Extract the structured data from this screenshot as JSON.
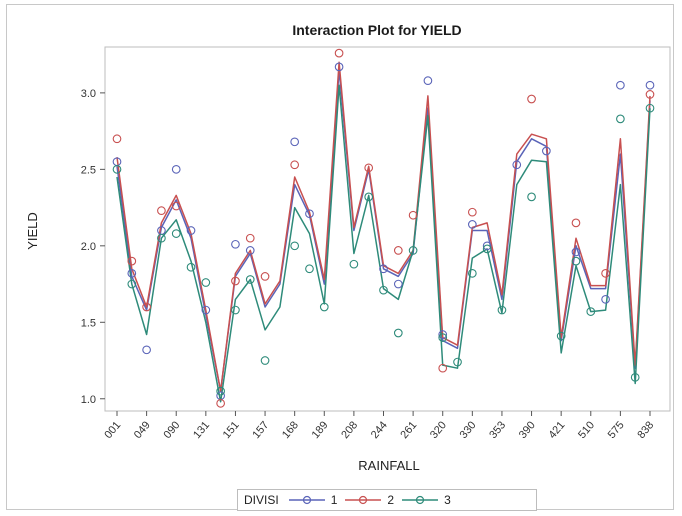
{
  "chart_data": {
    "type": "line",
    "title": "Interaction Plot for YIELD",
    "xlabel": "RAINFALL",
    "ylabel": "YIELD",
    "ylim": [
      0.92,
      3.3
    ],
    "yticks": [
      1.0,
      1.5,
      2.0,
      2.5,
      3.0
    ],
    "xticks": [
      "001",
      "049",
      "090",
      "131",
      "151",
      "157",
      "168",
      "189",
      "208",
      "244",
      "261",
      "320",
      "330",
      "353",
      "390",
      "421",
      "510",
      "575",
      "838"
    ],
    "grid": false,
    "legend": {
      "title": "DIVISI",
      "placement": "bottom",
      "entries": [
        "1",
        "2",
        "3"
      ]
    },
    "colors": {
      "1": "#5a64b8",
      "2": "#c85050",
      "3": "#2e8b7a"
    },
    "series": [
      {
        "name": "1",
        "values": [
          2.52,
          1.8,
          1.58,
          2.12,
          2.3,
          2.05,
          1.55,
          1.05,
          1.8,
          1.95,
          1.6,
          1.75,
          2.4,
          2.2,
          1.75,
          3.15,
          2.1,
          2.5,
          1.85,
          1.8,
          1.95,
          2.9,
          1.38,
          1.33,
          2.1,
          2.1,
          1.65,
          2.55,
          2.7,
          2.65,
          1.38,
          2.0,
          1.72,
          1.72,
          2.6,
          1.2,
          2.95
        ]
      },
      {
        "name": "2",
        "values": [
          2.58,
          1.85,
          1.6,
          2.15,
          2.33,
          2.08,
          1.58,
          1.05,
          1.82,
          1.97,
          1.62,
          1.77,
          2.45,
          2.22,
          1.78,
          3.2,
          2.12,
          2.52,
          1.87,
          1.82,
          1.97,
          2.98,
          1.4,
          1.35,
          2.12,
          2.15,
          1.68,
          2.6,
          2.73,
          2.7,
          1.4,
          2.05,
          1.74,
          1.74,
          2.7,
          1.22,
          2.98
        ]
      },
      {
        "name": "3",
        "values": [
          2.45,
          1.75,
          1.42,
          2.05,
          2.17,
          1.9,
          1.5,
          0.98,
          1.65,
          1.78,
          1.45,
          1.6,
          2.25,
          2.08,
          1.62,
          3.05,
          1.95,
          2.33,
          1.72,
          1.65,
          1.97,
          2.85,
          1.22,
          1.2,
          1.92,
          1.98,
          1.56,
          2.4,
          2.56,
          2.55,
          1.3,
          1.87,
          1.57,
          1.58,
          2.4,
          1.1,
          2.9
        ]
      }
    ],
    "points": [
      {
        "s": "1",
        "i": 0,
        "y": 2.55
      },
      {
        "s": "1",
        "i": 1,
        "y": 1.82
      },
      {
        "s": "1",
        "i": 2,
        "y": 1.32
      },
      {
        "s": "1",
        "i": 3,
        "y": 2.1
      },
      {
        "s": "1",
        "i": 4,
        "y": 2.5
      },
      {
        "s": "1",
        "i": 5,
        "y": 2.1
      },
      {
        "s": "1",
        "i": 6,
        "y": 1.58
      },
      {
        "s": "1",
        "i": 7,
        "y": 1.02
      },
      {
        "s": "1",
        "i": 8,
        "y": 2.01
      },
      {
        "s": "1",
        "i": 9,
        "y": 1.97
      },
      {
        "s": "1",
        "i": 12,
        "y": 2.68
      },
      {
        "s": "1",
        "i": 13,
        "y": 2.21
      },
      {
        "s": "1",
        "i": 15,
        "y": 3.17
      },
      {
        "s": "1",
        "i": 18,
        "y": 1.85
      },
      {
        "s": "1",
        "i": 19,
        "y": 1.75
      },
      {
        "s": "1",
        "i": 21,
        "y": 3.08
      },
      {
        "s": "1",
        "i": 22,
        "y": 1.42
      },
      {
        "s": "1",
        "i": 24,
        "y": 2.14
      },
      {
        "s": "1",
        "i": 25,
        "y": 2.0
      },
      {
        "s": "1",
        "i": 27,
        "y": 2.53
      },
      {
        "s": "1",
        "i": 29,
        "y": 2.62
      },
      {
        "s": "1",
        "i": 31,
        "y": 1.96
      },
      {
        "s": "1",
        "i": 33,
        "y": 1.65
      },
      {
        "s": "1",
        "i": 34,
        "y": 3.05
      },
      {
        "s": "1",
        "i": 36,
        "y": 3.05
      },
      {
        "s": "2",
        "i": 0,
        "y": 2.7
      },
      {
        "s": "2",
        "i": 1,
        "y": 1.9
      },
      {
        "s": "2",
        "i": 2,
        "y": 1.6
      },
      {
        "s": "2",
        "i": 3,
        "y": 2.23
      },
      {
        "s": "2",
        "i": 4,
        "y": 2.26
      },
      {
        "s": "2",
        "i": 7,
        "y": 0.97
      },
      {
        "s": "2",
        "i": 8,
        "y": 1.77
      },
      {
        "s": "2",
        "i": 9,
        "y": 2.05
      },
      {
        "s": "2",
        "i": 10,
        "y": 1.8
      },
      {
        "s": "2",
        "i": 12,
        "y": 2.53
      },
      {
        "s": "2",
        "i": 15,
        "y": 3.26
      },
      {
        "s": "2",
        "i": 17,
        "y": 2.51
      },
      {
        "s": "2",
        "i": 19,
        "y": 1.97
      },
      {
        "s": "2",
        "i": 20,
        "y": 2.2
      },
      {
        "s": "2",
        "i": 22,
        "y": 1.2
      },
      {
        "s": "2",
        "i": 24,
        "y": 2.22
      },
      {
        "s": "2",
        "i": 28,
        "y": 2.96
      },
      {
        "s": "2",
        "i": 31,
        "y": 2.15
      },
      {
        "s": "2",
        "i": 33,
        "y": 1.82
      },
      {
        "s": "2",
        "i": 36,
        "y": 2.99
      },
      {
        "s": "3",
        "i": 0,
        "y": 2.5
      },
      {
        "s": "3",
        "i": 1,
        "y": 1.75
      },
      {
        "s": "3",
        "i": 3,
        "y": 2.05
      },
      {
        "s": "3",
        "i": 4,
        "y": 2.08
      },
      {
        "s": "3",
        "i": 5,
        "y": 1.86
      },
      {
        "s": "3",
        "i": 6,
        "y": 1.76
      },
      {
        "s": "3",
        "i": 7,
        "y": 1.05
      },
      {
        "s": "3",
        "i": 8,
        "y": 1.58
      },
      {
        "s": "3",
        "i": 9,
        "y": 1.78
      },
      {
        "s": "3",
        "i": 10,
        "y": 1.25
      },
      {
        "s": "3",
        "i": 12,
        "y": 2.0
      },
      {
        "s": "3",
        "i": 13,
        "y": 1.85
      },
      {
        "s": "3",
        "i": 14,
        "y": 1.6
      },
      {
        "s": "3",
        "i": 16,
        "y": 1.88
      },
      {
        "s": "3",
        "i": 17,
        "y": 2.32
      },
      {
        "s": "3",
        "i": 18,
        "y": 1.71
      },
      {
        "s": "3",
        "i": 19,
        "y": 1.43
      },
      {
        "s": "3",
        "i": 20,
        "y": 1.97
      },
      {
        "s": "3",
        "i": 22,
        "y": 1.4
      },
      {
        "s": "3",
        "i": 23,
        "y": 1.24
      },
      {
        "s": "3",
        "i": 24,
        "y": 1.82
      },
      {
        "s": "3",
        "i": 25,
        "y": 1.98
      },
      {
        "s": "3",
        "i": 26,
        "y": 1.58
      },
      {
        "s": "3",
        "i": 28,
        "y": 2.32
      },
      {
        "s": "3",
        "i": 30,
        "y": 1.41
      },
      {
        "s": "3",
        "i": 31,
        "y": 1.9
      },
      {
        "s": "3",
        "i": 32,
        "y": 1.57
      },
      {
        "s": "3",
        "i": 34,
        "y": 2.83
      },
      {
        "s": "3",
        "i": 35,
        "y": 1.14
      },
      {
        "s": "3",
        "i": 36,
        "y": 2.9
      }
    ]
  }
}
